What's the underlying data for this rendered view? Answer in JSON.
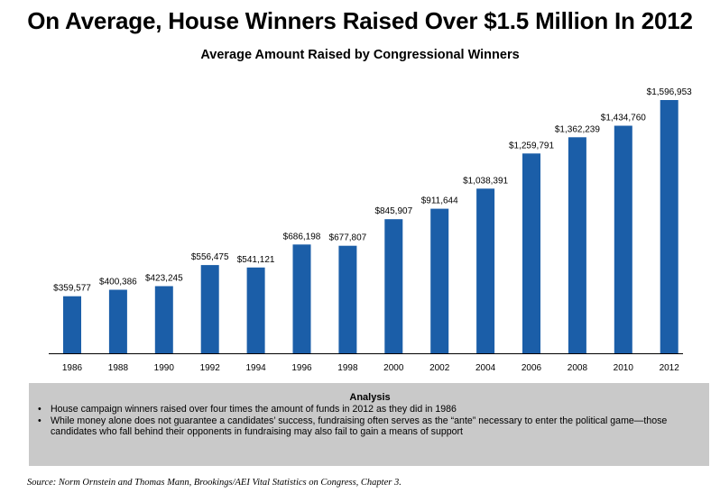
{
  "title": "On Average, House Winners Raised Over $1.5 Million In 2012",
  "colors": {
    "bar": "#1b5ea8",
    "analysis_background": "#c9c9c9",
    "axis": "#000000"
  },
  "chart_data": {
    "type": "bar",
    "title": "Average Amount Raised by Congressional Winners",
    "xlabel": "",
    "ylabel": "",
    "ylim": [
      0,
      1700000
    ],
    "grid": false,
    "legend": "none",
    "categories": [
      "1986",
      "1988",
      "1990",
      "1992",
      "1994",
      "1996",
      "1998",
      "2000",
      "2002",
      "2004",
      "2006",
      "2008",
      "2010",
      "2012"
    ],
    "values": [
      359577,
      400386,
      423245,
      556475,
      541121,
      686198,
      677807,
      845907,
      911644,
      1038391,
      1259791,
      1362239,
      1434760,
      1596953
    ],
    "data_labels": [
      "$359,577",
      "$400,386",
      "$423,245",
      "$556,475",
      "$541,121",
      "$686,198",
      "$677,807",
      "$845,907",
      "$911,644",
      "$1,038,391",
      "$1,259,791",
      "$1,362,239",
      "$1,434,760",
      "$1,596,953"
    ]
  },
  "analysis": {
    "heading": "Analysis",
    "bullets": [
      "House campaign winners raised over four times the amount of funds in 2012 as they did in 1986",
      "While money alone does not guarantee a candidates’ success, fundraising often serves as the “ante” necessary to enter the political game—those candidates who fall behind their opponents in fundraising may also fail to gain a means of support"
    ]
  },
  "source": "Source: Norm Ornstein and Thomas Mann, Brookings/AEI Vital Statistics on Congress, Chapter 3."
}
